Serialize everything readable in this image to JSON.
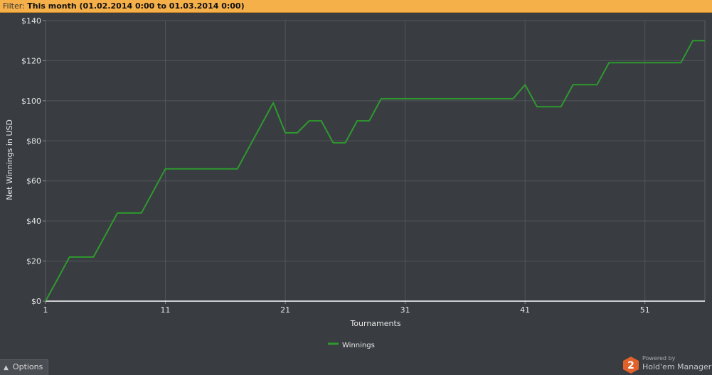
{
  "filter": {
    "label": "Filter:",
    "value": "This month (01.02.2014 0:00 to 01.03.2014 0:00)"
  },
  "options": {
    "label": "Options",
    "icon": "chevron-up-icon"
  },
  "branding": {
    "powered_by": "Powered by",
    "product": "Hold'em Manager",
    "badge_text": "2",
    "badge_color": "#e0622a"
  },
  "colors": {
    "filter_bar": "#f5b04a",
    "background": "#393c41",
    "line": "#2e9a2e",
    "grid": "#52565b"
  },
  "chart_data": {
    "type": "line",
    "xlabel": "Tournaments",
    "ylabel": "Net Winnings in USD",
    "xlim": [
      1,
      56
    ],
    "ylim": [
      0,
      140
    ],
    "x_ticks": [
      1,
      11,
      21,
      31,
      41,
      51
    ],
    "y_ticks": [
      0,
      20,
      40,
      60,
      80,
      100,
      120,
      140
    ],
    "y_tick_labels": [
      "$0",
      "$20",
      "$40",
      "$60",
      "$80",
      "$100",
      "$120",
      "$140"
    ],
    "grid": true,
    "legend_position": "bottom-center",
    "series": [
      {
        "name": "Winnings",
        "color": "#2e9a2e",
        "x": [
          1,
          2,
          3,
          4,
          5,
          6,
          7,
          8,
          9,
          10,
          11,
          12,
          13,
          14,
          15,
          16,
          17,
          18,
          19,
          20,
          21,
          22,
          23,
          24,
          25,
          26,
          27,
          28,
          29,
          30,
          31,
          32,
          33,
          34,
          35,
          36,
          37,
          38,
          39,
          40,
          41,
          42,
          43,
          44,
          45,
          46,
          47,
          48,
          49,
          50,
          51,
          52,
          53,
          54,
          55,
          56
        ],
        "values": [
          0,
          11,
          22,
          22,
          22,
          33,
          44,
          44,
          44,
          55,
          66,
          66,
          66,
          66,
          66,
          66,
          66,
          77,
          88,
          99,
          84,
          84,
          90,
          90,
          79,
          79,
          90,
          90,
          101,
          101,
          101,
          101,
          101,
          101,
          101,
          101,
          101,
          101,
          101,
          101,
          108,
          97,
          97,
          97,
          108,
          108,
          108,
          119,
          119,
          119,
          119,
          119,
          119,
          119,
          130,
          130
        ]
      }
    ]
  }
}
